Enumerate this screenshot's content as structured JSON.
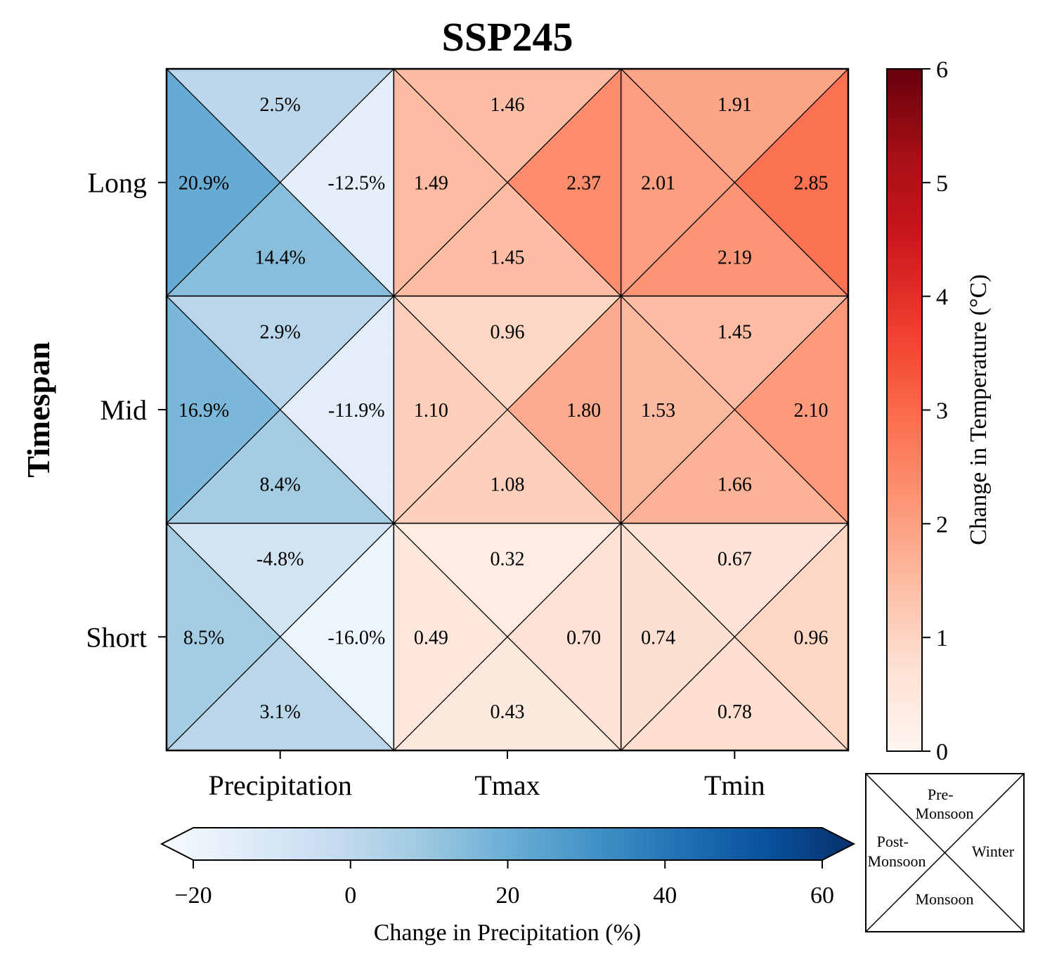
{
  "chart_data": {
    "type": "heatmap",
    "title": "SSP245",
    "ylabel": "Timespan",
    "rows": [
      "Long",
      "Mid",
      "Short"
    ],
    "columns": [
      "Precipitation",
      "Tmax",
      "Tmin"
    ],
    "seasons": [
      "Pre-Monsoon",
      "Winter",
      "Monsoon",
      "Post-Monsoon"
    ],
    "cells": [
      [
        {
          "column": "Precipitation",
          "pre_monsoon": "2.5%",
          "winter": "-12.5%",
          "monsoon": "14.4%",
          "post_monsoon": "20.9%"
        },
        {
          "column": "Tmax",
          "pre_monsoon": "1.46",
          "winter": "2.37",
          "monsoon": "1.45",
          "post_monsoon": "1.49"
        },
        {
          "column": "Tmin",
          "pre_monsoon": "1.91",
          "winter": "2.85",
          "monsoon": "2.19",
          "post_monsoon": "2.01"
        }
      ],
      [
        {
          "column": "Precipitation",
          "pre_monsoon": "2.9%",
          "winter": "-11.9%",
          "monsoon": "8.4%",
          "post_monsoon": "16.9%"
        },
        {
          "column": "Tmax",
          "pre_monsoon": "0.96",
          "winter": "1.80",
          "monsoon": "1.08",
          "post_monsoon": "1.10"
        },
        {
          "column": "Tmin",
          "pre_monsoon": "1.45",
          "winter": "2.10",
          "monsoon": "1.66",
          "post_monsoon": "1.53"
        }
      ],
      [
        {
          "column": "Precipitation",
          "pre_monsoon": "-4.8%",
          "winter": "-16.0%",
          "monsoon": "3.1%",
          "post_monsoon": "8.5%"
        },
        {
          "column": "Tmax",
          "pre_monsoon": "0.32",
          "winter": "0.70",
          "monsoon": "0.43",
          "post_monsoon": "0.49"
        },
        {
          "column": "Tmin",
          "pre_monsoon": "0.67",
          "winter": "0.96",
          "monsoon": "0.78",
          "post_monsoon": "0.74"
        }
      ]
    ],
    "temperature_colorbar": {
      "label": "Change in Temperature (°C)",
      "range": [
        0,
        6
      ],
      "ticks": [
        "0",
        "1",
        "2",
        "3",
        "4",
        "5",
        "6"
      ],
      "colormap": "Reds"
    },
    "precipitation_colorbar": {
      "label": "Change in Precipitation (%)",
      "range": [
        -20,
        60
      ],
      "ticks": [
        "−20",
        "0",
        "20",
        "40",
        "60"
      ],
      "colormap": "Blues",
      "extend": "both"
    },
    "legend_labels": {
      "pre_monsoon": [
        "Pre-",
        "Monsoon"
      ],
      "winter": [
        "Winter"
      ],
      "monsoon": [
        "Monsoon"
      ],
      "post_monsoon": [
        "Post-",
        "Monsoon"
      ]
    }
  }
}
